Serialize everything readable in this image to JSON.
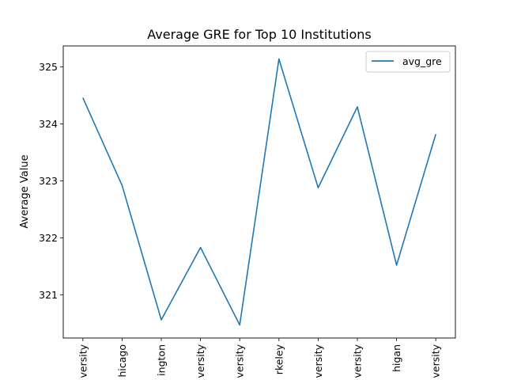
{
  "chart_data": {
    "type": "line",
    "title": "Average GRE for Top 10 Institutions",
    "xlabel": "",
    "ylabel": "Average Value",
    "categories": [
      "versity",
      "hicago",
      "ington",
      "versity",
      "versity",
      "rkeley",
      "versity",
      "versity",
      "higan",
      "versity"
    ],
    "series": [
      {
        "name": "avg_gre",
        "color": "#1f77b4",
        "values": [
          324.46,
          322.92,
          320.56,
          321.83,
          320.47,
          325.14,
          322.88,
          324.3,
          321.52,
          323.82
        ]
      }
    ],
    "yticks": [
      321,
      322,
      323,
      324,
      325
    ],
    "ylim": [
      320.24,
      325.37
    ],
    "grid": false,
    "legend": "top-right"
  }
}
